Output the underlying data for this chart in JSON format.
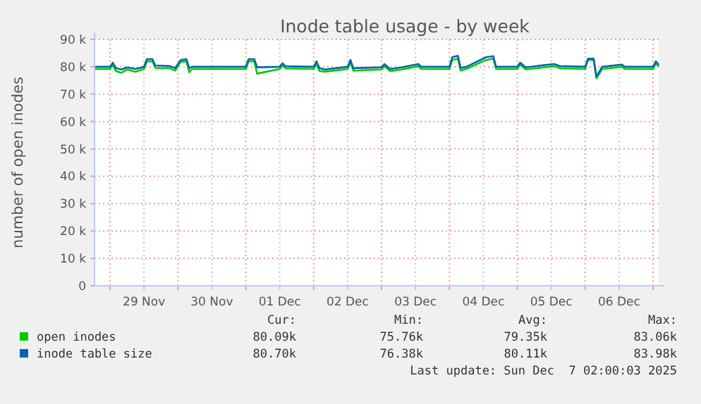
{
  "chart_data": {
    "type": "line",
    "title": "Inode table usage - by week",
    "ylabel": "number of open inodes",
    "xlim": [
      "2025-11-28T18:30",
      "2025-12-07T02:00"
    ],
    "xticks": [
      {
        "value": "2025-11-29T00:00",
        "label": null
      },
      {
        "value": "2025-11-29T12:00",
        "label": "29 Nov"
      },
      {
        "value": "2025-11-30T00:00",
        "label": null
      },
      {
        "value": "2025-11-30T12:00",
        "label": "30 Nov"
      },
      {
        "value": "2025-12-01T00:00",
        "label": null
      },
      {
        "value": "2025-12-01T12:00",
        "label": "01 Dec"
      },
      {
        "value": "2025-12-02T00:00",
        "label": null
      },
      {
        "value": "2025-12-02T12:00",
        "label": "02 Dec"
      },
      {
        "value": "2025-12-03T00:00",
        "label": null
      },
      {
        "value": "2025-12-03T12:00",
        "label": "03 Dec"
      },
      {
        "value": "2025-12-04T00:00",
        "label": null
      },
      {
        "value": "2025-12-04T12:00",
        "label": "04 Dec"
      },
      {
        "value": "2025-12-05T00:00",
        "label": null
      },
      {
        "value": "2025-12-05T12:00",
        "label": "05 Dec"
      },
      {
        "value": "2025-12-06T00:00",
        "label": null
      },
      {
        "value": "2025-12-06T12:00",
        "label": "06 Dec"
      },
      {
        "value": "2025-12-07T00:00",
        "label": null
      }
    ],
    "ylim": [
      0,
      90000
    ],
    "yticks": [
      0,
      {
        "value": 10000,
        "label": "10 k"
      },
      {
        "value": 20000,
        "label": "20 k"
      },
      {
        "value": 30000,
        "label": "30 k"
      },
      {
        "value": 40000,
        "label": "40 k"
      },
      {
        "value": 50000,
        "label": "50 k"
      },
      {
        "value": 60000,
        "label": "60 k"
      },
      {
        "value": 70000,
        "label": "70 k"
      },
      {
        "value": 80000,
        "label": "80 k"
      },
      {
        "value": 90000,
        "label": "90 k"
      }
    ],
    "grid": true,
    "legend": "bottom",
    "marker": "none",
    "line_style": "solid",
    "x": [
      "2025-11-28T18:30",
      "2025-11-29T00:00",
      "2025-11-29T01:00",
      "2025-11-29T02:00",
      "2025-11-29T04:00",
      "2025-11-29T06:00",
      "2025-11-29T09:00",
      "2025-11-29T12:00",
      "2025-11-29T13:00",
      "2025-11-29T15:00",
      "2025-11-29T16:00",
      "2025-11-29T21:00",
      "2025-11-29T23:00",
      "2025-11-30T01:00",
      "2025-11-30T03:00",
      "2025-11-30T04:00",
      "2025-11-30T05:00",
      "2025-11-30T12:00",
      "2025-12-01T00:00",
      "2025-12-01T01:00",
      "2025-12-01T03:00",
      "2025-12-01T04:00",
      "2025-12-01T12:00",
      "2025-12-01T13:00",
      "2025-12-01T14:00",
      "2025-12-02T00:00",
      "2025-12-02T01:00",
      "2025-12-02T02:00",
      "2025-12-02T04:00",
      "2025-12-02T12:00",
      "2025-12-02T13:00",
      "2025-12-02T14:00",
      "2025-12-03T00:00",
      "2025-12-03T01:00",
      "2025-12-03T03:00",
      "2025-12-03T07:00",
      "2025-12-03T13:00",
      "2025-12-03T14:00",
      "2025-12-04T00:00",
      "2025-12-04T01:00",
      "2025-12-04T03:00",
      "2025-12-04T04:00",
      "2025-12-04T06:00",
      "2025-12-04T13:00",
      "2025-12-04T15:30",
      "2025-12-04T16:30",
      "2025-12-05T00:00",
      "2025-12-05T01:00",
      "2025-12-05T03:00",
      "2025-12-05T07:00",
      "2025-12-05T13:00",
      "2025-12-05T15:00",
      "2025-12-06T00:00",
      "2025-12-06T01:00",
      "2025-12-06T03:00",
      "2025-12-06T04:00",
      "2025-12-06T06:00",
      "2025-12-06T13:00",
      "2025-12-06T14:00",
      "2025-12-07T00:00",
      "2025-12-07T01:00",
      "2025-12-07T02:00"
    ],
    "series": [
      {
        "name": "open inodes",
        "color": "#00cc00",
        "values": [
          79200,
          79200,
          80800,
          78500,
          77800,
          79000,
          78200,
          79200,
          82000,
          82000,
          79600,
          79500,
          78600,
          81800,
          82000,
          78000,
          79200,
          79200,
          79200,
          82000,
          82000,
          77500,
          79200,
          80500,
          79400,
          79200,
          81200,
          78500,
          78200,
          79200,
          81800,
          78600,
          79000,
          80200,
          78400,
          79000,
          80200,
          79200,
          79200,
          82500,
          83000,
          78600,
          79200,
          82500,
          83000,
          79200,
          79200,
          80800,
          79000,
          79500,
          80200,
          79500,
          79200,
          82500,
          82500,
          75800,
          79200,
          80000,
          79200,
          79200,
          81300,
          80100
        ]
      },
      {
        "name": "inode table size",
        "color": "#0066b3",
        "values": [
          80000,
          80000,
          81500,
          79500,
          79000,
          79800,
          79200,
          80000,
          82800,
          82800,
          80500,
          80300,
          79500,
          82500,
          82800,
          79500,
          80000,
          80000,
          80000,
          82800,
          82800,
          79800,
          80000,
          81300,
          80200,
          80000,
          82000,
          79500,
          79000,
          80000,
          82500,
          79500,
          79800,
          81000,
          79200,
          79800,
          81000,
          80000,
          80000,
          83500,
          84000,
          79500,
          80000,
          83500,
          83900,
          80000,
          80000,
          81500,
          79800,
          80300,
          81000,
          80300,
          80000,
          83000,
          83000,
          76400,
          80000,
          80800,
          80000,
          80000,
          82000,
          80700
        ]
      }
    ],
    "annotations": [
      "Cur:",
      "Min:",
      "Avg:",
      "Max:",
      "80.09k",
      "75.76k",
      "79.35k",
      "83.06k",
      "80.70k",
      "76.38k",
      "80.11k",
      "83.98k",
      "Last update: Sun Dec  7 02:00:03 2025"
    ]
  }
}
